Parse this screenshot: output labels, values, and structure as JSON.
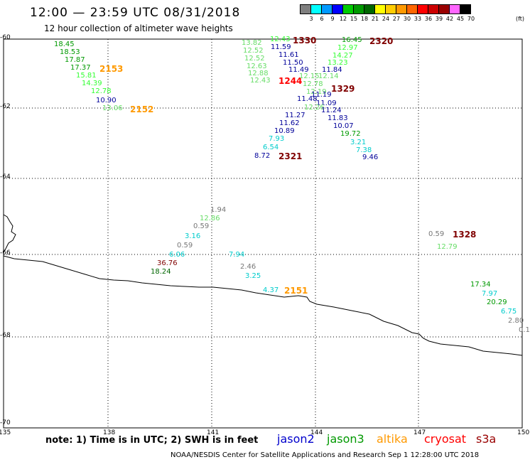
{
  "header": {
    "title": "12:00 — 23:59 UTC 08/31/2018",
    "subtitle": "12 hour collection of altimeter wave heights"
  },
  "color_scale": {
    "labels": [
      "3",
      "6",
      "9",
      "12",
      "15",
      "18",
      "21",
      "24",
      "27",
      "30",
      "33",
      "36",
      "39",
      "42",
      "45",
      "70",
      "(ft)"
    ],
    "colors": [
      "#7f7f7f",
      "#00ffff",
      "#0099ff",
      "#0000ff",
      "#00cc00",
      "#009900",
      "#006600",
      "#ffff00",
      "#ffcc00",
      "#ff9900",
      "#ff6600",
      "#ff0000",
      "#cc0000",
      "#990000",
      "#ff66ff",
      "#000000"
    ]
  },
  "axes": {
    "x_ticks": [
      "135",
      "138",
      "141",
      "144",
      "147",
      "150"
    ],
    "y_ticks": [
      "-60",
      "-62",
      "-64",
      "-66",
      "-68",
      "-70"
    ]
  },
  "colors": {
    "green": "#33ff33",
    "darkgreen": "#009900",
    "olive": "#006600",
    "blue": "#000099",
    "cyan": "#00cccc",
    "grey": "#777777",
    "orange": "#ff9900",
    "red": "#ff0000",
    "darkred": "#800000",
    "ltgreen": "#66dd66"
  },
  "values": [
    {
      "t": "18.45",
      "c": "darkgreen"
    },
    {
      "t": "18.53",
      "c": "darkgreen"
    },
    {
      "t": "17.87",
      "c": "darkgreen"
    },
    {
      "t": "17.37",
      "c": "darkgreen"
    },
    {
      "t": "15.81",
      "c": "green"
    },
    {
      "t": "14.39",
      "c": "green"
    },
    {
      "t": "12.78",
      "c": "green"
    },
    {
      "t": "10.90",
      "c": "blue"
    },
    {
      "t": "13.06",
      "c": "ltgreen"
    },
    {
      "t": "2153",
      "c": "orange"
    },
    {
      "t": "2152",
      "c": "orange"
    },
    {
      "t": "13.82",
      "c": "ltgreen"
    },
    {
      "t": "12.52",
      "c": "ltgreen"
    },
    {
      "t": "12.52",
      "c": "ltgreen"
    },
    {
      "t": "12.63",
      "c": "ltgreen"
    },
    {
      "t": "12.88",
      "c": "ltgreen"
    },
    {
      "t": "12.43",
      "c": "ltgreen"
    },
    {
      "t": "12.43",
      "c": "green"
    },
    {
      "t": "1330",
      "c": "darkred"
    },
    {
      "t": "11.59",
      "c": "blue"
    },
    {
      "t": "11.61",
      "c": "blue"
    },
    {
      "t": "11.50",
      "c": "blue"
    },
    {
      "t": "11.49",
      "c": "blue"
    },
    {
      "t": "1244",
      "c": "red"
    },
    {
      "t": "16.45",
      "c": "darkgreen"
    },
    {
      "t": "2320",
      "c": "darkred"
    },
    {
      "t": "12.97",
      "c": "green"
    },
    {
      "t": "14.27",
      "c": "green"
    },
    {
      "t": "13.23",
      "c": "green"
    },
    {
      "t": "11.84",
      "c": "blue"
    },
    {
      "t": "12.15",
      "c": "ltgreen"
    },
    {
      "t": "12.14",
      "c": "ltgreen"
    },
    {
      "t": "12.78",
      "c": "ltgreen"
    },
    {
      "t": "1329",
      "c": "darkred"
    },
    {
      "t": "12.19",
      "c": "ltgreen"
    },
    {
      "t": "11.19",
      "c": "blue"
    },
    {
      "t": "11.48",
      "c": "blue"
    },
    {
      "t": "11.09",
      "c": "blue"
    },
    {
      "t": "12.26",
      "c": "ltgreen"
    },
    {
      "t": "11.24",
      "c": "blue"
    },
    {
      "t": "11.27",
      "c": "blue"
    },
    {
      "t": "11.83",
      "c": "blue"
    },
    {
      "t": "11.62",
      "c": "blue"
    },
    {
      "t": "10.07",
      "c": "blue"
    },
    {
      "t": "10.89",
      "c": "blue"
    },
    {
      "t": "19.72",
      "c": "darkgreen"
    },
    {
      "t": "7.93",
      "c": "cyan"
    },
    {
      "t": "3.21",
      "c": "cyan"
    },
    {
      "t": "6.54",
      "c": "cyan"
    },
    {
      "t": "7.38",
      "c": "cyan"
    },
    {
      "t": "8.72",
      "c": "blue"
    },
    {
      "t": "2321",
      "c": "darkred"
    },
    {
      "t": "9.46",
      "c": "blue"
    },
    {
      "t": "1.94",
      "c": "grey"
    },
    {
      "t": "12.86",
      "c": "ltgreen"
    },
    {
      "t": "0.59",
      "c": "grey"
    },
    {
      "t": "3.16",
      "c": "cyan"
    },
    {
      "t": "0.59",
      "c": "grey"
    },
    {
      "t": "6.06",
      "c": "cyan"
    },
    {
      "t": "7.94",
      "c": "cyan"
    },
    {
      "t": "36.76",
      "c": "darkred"
    },
    {
      "t": "18.24",
      "c": "olive"
    },
    {
      "t": "2.46",
      "c": "grey"
    },
    {
      "t": "3.25",
      "c": "cyan"
    },
    {
      "t": "4.37",
      "c": "cyan"
    },
    {
      "t": "2151",
      "c": "orange"
    },
    {
      "t": "0.59",
      "c": "grey"
    },
    {
      "t": "1328",
      "c": "darkred"
    },
    {
      "t": "12.79",
      "c": "ltgreen"
    },
    {
      "t": "17.34",
      "c": "darkgreen"
    },
    {
      "t": "7.97",
      "c": "cyan"
    },
    {
      "t": "20.29",
      "c": "darkgreen"
    },
    {
      "t": "6.75",
      "c": "cyan"
    },
    {
      "t": "2.80",
      "c": "grey"
    },
    {
      "t": "0.1",
      "c": "grey"
    }
  ],
  "footer": {
    "note": "note: 1) Time is in UTC; 2) SWH is in feet",
    "credit": "NOAA/NESDIS Center for Satellite Applications and Research   Sep  1 12:28:00 UTC 2018",
    "legend": [
      {
        "label": "jason2",
        "color": "#0000cc"
      },
      {
        "label": "jason3",
        "color": "#009900"
      },
      {
        "label": "altika",
        "color": "#ff9900"
      },
      {
        "label": "cryosat",
        "color": "#ff0000"
      },
      {
        "label": "s3a",
        "color": "#990000"
      }
    ]
  }
}
